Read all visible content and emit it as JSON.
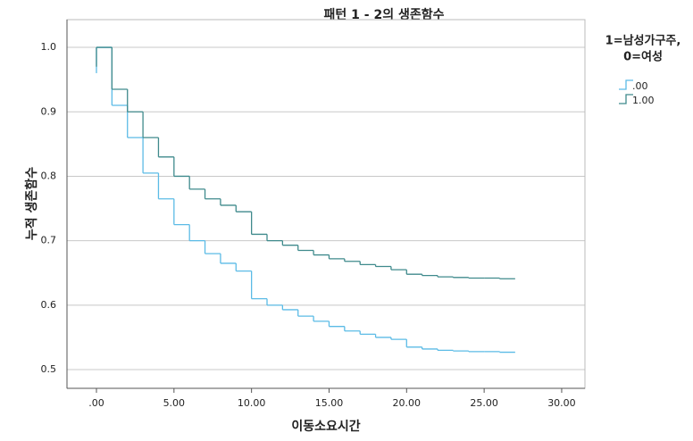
{
  "chart_data": {
    "type": "step",
    "title": "패턴 1 - 2의 생존함수",
    "x_label": "이동소요시간",
    "y_label": "누적 생존함수",
    "legend_title": [
      "1=남성가구주,",
      "0=여성"
    ],
    "x": [
      0,
      0,
      1,
      2,
      3,
      4,
      5,
      6,
      7,
      8,
      9,
      10,
      11,
      12,
      13,
      14,
      15,
      16,
      17,
      18,
      19,
      20,
      21,
      22,
      23,
      24,
      25,
      26,
      27
    ],
    "series": [
      {
        "name": ".00",
        "color": "#5bbbe6",
        "values": [
          0.96,
          1.0,
          0.91,
          0.86,
          0.805,
          0.765,
          0.725,
          0.7,
          0.68,
          0.665,
          0.653,
          0.61,
          0.6,
          0.593,
          0.583,
          0.575,
          0.567,
          0.56,
          0.555,
          0.55,
          0.547,
          0.535,
          0.532,
          0.53,
          0.529,
          0.528,
          0.528,
          0.527,
          0.527
        ]
      },
      {
        "name": "1.00",
        "color": "#3f8a8c",
        "values": [
          0.97,
          1.0,
          0.935,
          0.9,
          0.86,
          0.83,
          0.8,
          0.78,
          0.765,
          0.755,
          0.745,
          0.71,
          0.7,
          0.693,
          0.685,
          0.678,
          0.672,
          0.668,
          0.663,
          0.66,
          0.655,
          0.648,
          0.646,
          0.644,
          0.643,
          0.642,
          0.642,
          0.641,
          0.641
        ]
      }
    ],
    "xlim": [
      -1.9,
      31.5
    ],
    "ylim": [
      0.471,
      1.043
    ],
    "xticks": [
      {
        "value": 0,
        "label": ".00"
      },
      {
        "value": 5,
        "label": "5.00"
      },
      {
        "value": 10,
        "label": "10.00"
      },
      {
        "value": 15,
        "label": "15.00"
      },
      {
        "value": 20,
        "label": "20.00"
      },
      {
        "value": 25,
        "label": "25.00"
      },
      {
        "value": 30,
        "label": "30.00"
      }
    ],
    "yticks": [
      0.5,
      0.6,
      0.7,
      0.8,
      0.9,
      {
        "value": 1,
        "label": "1.0"
      }
    ],
    "grid": true
  }
}
